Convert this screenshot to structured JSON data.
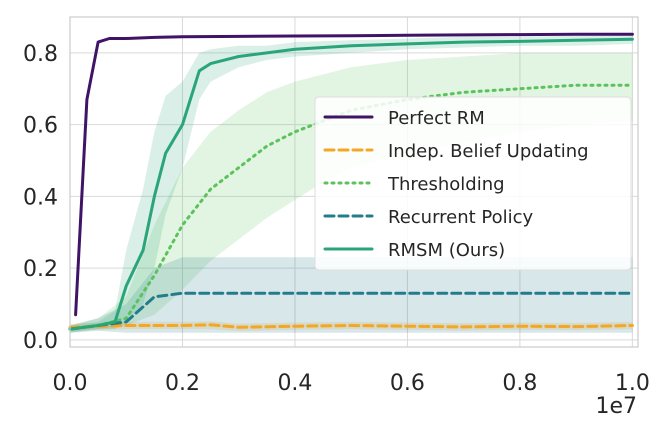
{
  "chart_data": {
    "type": "line",
    "title": "",
    "xlabel": "",
    "ylabel": "",
    "x_scale_label": "1e7",
    "xlim": [
      0.0,
      1.01
    ],
    "ylim": [
      -0.02,
      0.9
    ],
    "x_ticks": [
      0.0,
      0.2,
      0.4,
      0.6,
      0.8,
      1.0
    ],
    "x_tick_labels": [
      "0.0",
      "0.2",
      "0.4",
      "0.6",
      "0.8",
      "1.0"
    ],
    "y_ticks": [
      0.0,
      0.2,
      0.4,
      0.6,
      0.8
    ],
    "y_tick_labels": [
      "0.0",
      "0.2",
      "0.4",
      "0.6",
      "0.8"
    ],
    "grid": true,
    "legend_position": "center-right",
    "series": [
      {
        "name": "Perfect RM",
        "color": "#3f1466",
        "style": "solid",
        "x": [
          0.01,
          0.03,
          0.05,
          0.07,
          0.1,
          0.15,
          0.2,
          0.3,
          0.4,
          0.5,
          0.6,
          0.7,
          0.8,
          0.9,
          1.0
        ],
        "y": [
          0.07,
          0.67,
          0.83,
          0.84,
          0.84,
          0.843,
          0.845,
          0.846,
          0.847,
          0.848,
          0.849,
          0.85,
          0.851,
          0.852,
          0.852
        ]
      },
      {
        "name": "Indep. Belief Updating",
        "color": "#f5a623",
        "style": "dashed",
        "x": [
          0.0,
          0.1,
          0.2,
          0.25,
          0.3,
          0.4,
          0.5,
          0.6,
          0.7,
          0.8,
          0.9,
          1.0
        ],
        "y": [
          0.035,
          0.04,
          0.04,
          0.042,
          0.035,
          0.038,
          0.04,
          0.038,
          0.036,
          0.038,
          0.037,
          0.04
        ],
        "band_lower": [
          0.025,
          0.03,
          0.03,
          0.03,
          0.025,
          0.028,
          0.03,
          0.028,
          0.026,
          0.028,
          0.027,
          0.03
        ],
        "band_upper": [
          0.045,
          0.05,
          0.05,
          0.052,
          0.045,
          0.048,
          0.05,
          0.048,
          0.046,
          0.048,
          0.047,
          0.05
        ]
      },
      {
        "name": "Thresholding",
        "color": "#5cc25c",
        "style": "dotted",
        "x": [
          0.0,
          0.05,
          0.1,
          0.15,
          0.2,
          0.25,
          0.3,
          0.35,
          0.4,
          0.45,
          0.5,
          0.6,
          0.7,
          0.8,
          0.9,
          1.0
        ],
        "y": [
          0.03,
          0.04,
          0.06,
          0.18,
          0.32,
          0.42,
          0.48,
          0.54,
          0.58,
          0.61,
          0.64,
          0.67,
          0.69,
          0.7,
          0.71,
          0.71
        ],
        "band_lower": [
          0.02,
          0.03,
          0.04,
          0.07,
          0.14,
          0.22,
          0.28,
          0.34,
          0.39,
          0.44,
          0.48,
          0.52,
          0.55,
          0.58,
          0.6,
          0.61
        ],
        "band_upper": [
          0.04,
          0.06,
          0.12,
          0.32,
          0.48,
          0.58,
          0.64,
          0.69,
          0.72,
          0.74,
          0.76,
          0.78,
          0.79,
          0.8,
          0.8,
          0.8
        ]
      },
      {
        "name": "Recurrent Policy",
        "color": "#227c8a",
        "style": "dashed",
        "x": [
          0.0,
          0.05,
          0.1,
          0.15,
          0.2,
          0.3,
          0.4,
          0.5,
          0.6,
          0.7,
          0.8,
          0.9,
          1.0
        ],
        "y": [
          0.03,
          0.04,
          0.05,
          0.12,
          0.13,
          0.13,
          0.13,
          0.13,
          0.13,
          0.13,
          0.13,
          0.13,
          0.13
        ],
        "band_lower": [
          0.02,
          0.025,
          0.02,
          0.02,
          0.02,
          0.02,
          0.02,
          0.02,
          0.02,
          0.02,
          0.02,
          0.02,
          0.02
        ],
        "band_upper": [
          0.04,
          0.06,
          0.1,
          0.2,
          0.23,
          0.23,
          0.23,
          0.23,
          0.23,
          0.23,
          0.23,
          0.23,
          0.23
        ]
      },
      {
        "name": "RMSM (Ours)",
        "color": "#2aa57a",
        "style": "solid",
        "x": [
          0.0,
          0.05,
          0.08,
          0.1,
          0.13,
          0.15,
          0.17,
          0.2,
          0.23,
          0.25,
          0.3,
          0.35,
          0.4,
          0.5,
          0.6,
          0.7,
          0.8,
          0.9,
          1.0
        ],
        "y": [
          0.03,
          0.04,
          0.05,
          0.15,
          0.25,
          0.4,
          0.52,
          0.6,
          0.75,
          0.77,
          0.79,
          0.8,
          0.81,
          0.82,
          0.825,
          0.83,
          0.832,
          0.835,
          0.838
        ],
        "band_lower": [
          0.02,
          0.03,
          0.03,
          0.05,
          0.1,
          0.2,
          0.35,
          0.48,
          0.67,
          0.72,
          0.76,
          0.78,
          0.79,
          0.8,
          0.81,
          0.815,
          0.82,
          0.82,
          0.825
        ],
        "band_upper": [
          0.04,
          0.05,
          0.08,
          0.25,
          0.42,
          0.58,
          0.68,
          0.72,
          0.8,
          0.81,
          0.82,
          0.82,
          0.83,
          0.835,
          0.84,
          0.845,
          0.845,
          0.848,
          0.85
        ]
      }
    ]
  }
}
